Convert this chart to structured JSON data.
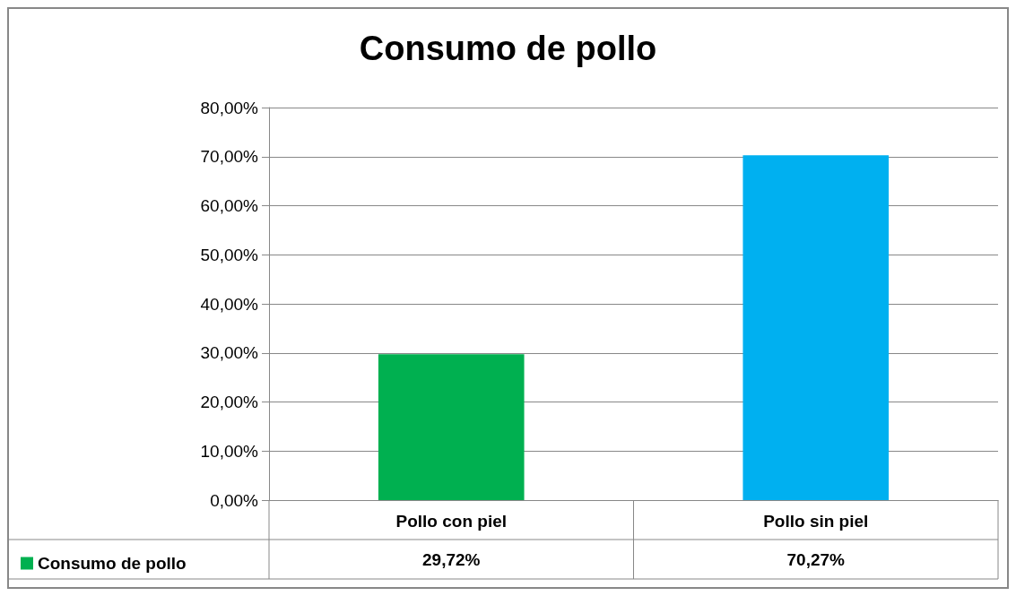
{
  "chart_data": {
    "type": "bar",
    "title": "Consumo de pollo",
    "categories": [
      "Pollo con piel",
      "Pollo sin piel"
    ],
    "series": [
      {
        "name": "Consumo de pollo",
        "color": "#00b050",
        "colors": [
          "#00b050",
          "#00b0f0"
        ],
        "values": [
          29.72,
          70.27
        ],
        "value_labels": [
          "29,72%",
          "70,27%"
        ]
      }
    ],
    "ylim": [
      0,
      80
    ],
    "yticks": [
      {
        "value": 0,
        "label": "0,00%"
      },
      {
        "value": 10,
        "label": "10,00%"
      },
      {
        "value": 20,
        "label": "20,00%"
      },
      {
        "value": 30,
        "label": "30,00%"
      },
      {
        "value": 40,
        "label": "40,00%"
      },
      {
        "value": 50,
        "label": "50,00%"
      },
      {
        "value": 60,
        "label": "60,00%"
      },
      {
        "value": 70,
        "label": "70,00%"
      },
      {
        "value": 80,
        "label": "80,00%"
      }
    ],
    "grid": "y",
    "legend": "bottom left"
  }
}
